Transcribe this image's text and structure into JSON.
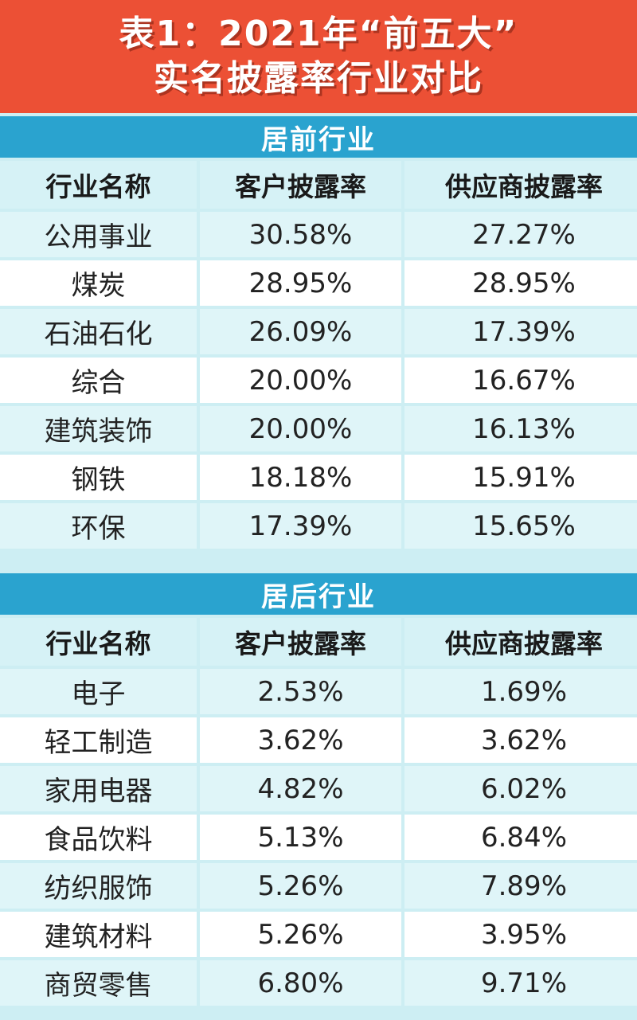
{
  "title": {
    "line1": "表1：2021年“前五大”",
    "line2": "实名披露率行业对比"
  },
  "columns": {
    "industry": "行业名称",
    "customer": "客户披露率",
    "supplier": "供应商披露率"
  },
  "top_section": {
    "heading": "居前行业",
    "rows": [
      {
        "industry": "公用事业",
        "customer": "30.58%",
        "supplier": "27.27%"
      },
      {
        "industry": "煤炭",
        "customer": "28.95%",
        "supplier": "28.95%"
      },
      {
        "industry": "石油石化",
        "customer": "26.09%",
        "supplier": "17.39%"
      },
      {
        "industry": "综合",
        "customer": "20.00%",
        "supplier": "16.67%"
      },
      {
        "industry": "建筑装饰",
        "customer": "20.00%",
        "supplier": "16.13%"
      },
      {
        "industry": "钢铁",
        "customer": "18.18%",
        "supplier": "15.91%"
      },
      {
        "industry": "环保",
        "customer": "17.39%",
        "supplier": "15.65%"
      }
    ]
  },
  "bottom_section": {
    "heading": "居后行业",
    "rows": [
      {
        "industry": "电子",
        "customer": "2.53%",
        "supplier": "1.69%"
      },
      {
        "industry": "轻工制造",
        "customer": "3.62%",
        "supplier": "3.62%"
      },
      {
        "industry": "家用电器",
        "customer": "4.82%",
        "supplier": "6.02%"
      },
      {
        "industry": "食品饮料",
        "customer": "5.13%",
        "supplier": "6.84%"
      },
      {
        "industry": "纺织服饰",
        "customer": "5.26%",
        "supplier": "7.89%"
      },
      {
        "industry": "建筑材料",
        "customer": "5.26%",
        "supplier": "3.95%"
      },
      {
        "industry": "商贸零售",
        "customer": "6.80%",
        "supplier": "9.71%"
      }
    ]
  }
}
